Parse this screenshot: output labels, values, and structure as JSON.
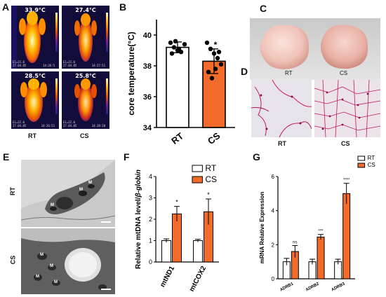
{
  "panelA": {
    "letter": "A",
    "images": [
      {
        "temp": "33.9°C",
        "info": [
          "E1=22.0",
          "27.04.05"
        ],
        "time": "14:26:5"
      },
      {
        "temp": "27.4°C",
        "info": [
          "E1=22.0",
          "27.04.05"
        ],
        "time": "14:27:51"
      },
      {
        "temp": "28.5°C",
        "info": [
          "E1=22.0",
          "27.04.05"
        ],
        "time": "14:26:51"
      },
      {
        "temp": "25.8°C",
        "info": [
          "E1=22.0",
          "27.04.05"
        ],
        "time": "14:28:20"
      }
    ],
    "labels": [
      "RT",
      "CS"
    ]
  },
  "panelB": {
    "letter": "B",
    "chart_data": {
      "type": "bar",
      "categories": [
        "RT",
        "CS"
      ],
      "values": [
        39.2,
        38.3
      ],
      "errors": [
        0.35,
        0.8
      ],
      "points": [
        [
          39.5,
          39.2,
          39.0,
          38.9,
          39.4,
          38.8,
          39.6,
          39.1
        ],
        [
          39.5,
          39.1,
          38.8,
          38.5,
          38.1,
          37.6,
          37.2,
          37.8,
          38.9
        ]
      ],
      "ylabel": "core temperature(°C)",
      "ylim": [
        34,
        41
      ],
      "yticks": [
        "34",
        "36",
        "38",
        "40"
      ],
      "annotation": "*",
      "colors": [
        "#ffffff",
        "#f26b2a"
      ]
    }
  },
  "panelC": {
    "letter": "C",
    "labels": [
      "RT",
      "CS"
    ]
  },
  "panelD": {
    "letter": "D",
    "labels": [
      "RT",
      "CS"
    ]
  },
  "panelE": {
    "letter": "E",
    "labels": [
      "RT",
      "CS"
    ],
    "marks": [
      "M",
      "M",
      "M",
      "M",
      "M",
      "M",
      "M"
    ]
  },
  "panelF": {
    "letter": "F",
    "chart_data": {
      "type": "bar",
      "categories": [
        "mtND1",
        "mtCOX2"
      ],
      "series": [
        {
          "name": "RT",
          "values": [
            1.0,
            1.0
          ],
          "errors": [
            0.08,
            0.06
          ]
        },
        {
          "name": "CS",
          "values": [
            2.25,
            2.35
          ],
          "errors": [
            0.35,
            0.6
          ]
        }
      ],
      "ylabel_prefix": "Relative mtDNA level/",
      "ylabel_italic": "β-globin",
      "ylim": [
        0,
        4
      ],
      "yticks": [
        "0",
        "1",
        "2",
        "3",
        "4"
      ],
      "annotations": [
        "*",
        "*"
      ],
      "colors": [
        "#ffffff",
        "#f26b2a"
      ],
      "legend": "top-right"
    }
  },
  "panelG": {
    "letter": "G",
    "chart_data": {
      "type": "bar",
      "categories": [
        "ADRB1",
        "ADRB2",
        "ADRB3"
      ],
      "series": [
        {
          "name": "RT",
          "values": [
            1.0,
            1.0,
            1.0
          ],
          "errors": [
            0.2,
            0.15,
            0.15
          ]
        },
        {
          "name": "CS",
          "values": [
            1.6,
            2.45,
            5.0
          ],
          "errors": [
            0.35,
            0.15,
            0.6
          ]
        }
      ],
      "ylabel": "mRNA Relative Expression",
      "ylim": [
        0,
        6
      ],
      "yticks": [
        "0",
        "2",
        "4",
        "6"
      ],
      "annotations": [
        "ns",
        "***",
        "****"
      ],
      "colors": [
        "#ffffff",
        "#f26b2a"
      ],
      "legend": "top-right"
    }
  }
}
